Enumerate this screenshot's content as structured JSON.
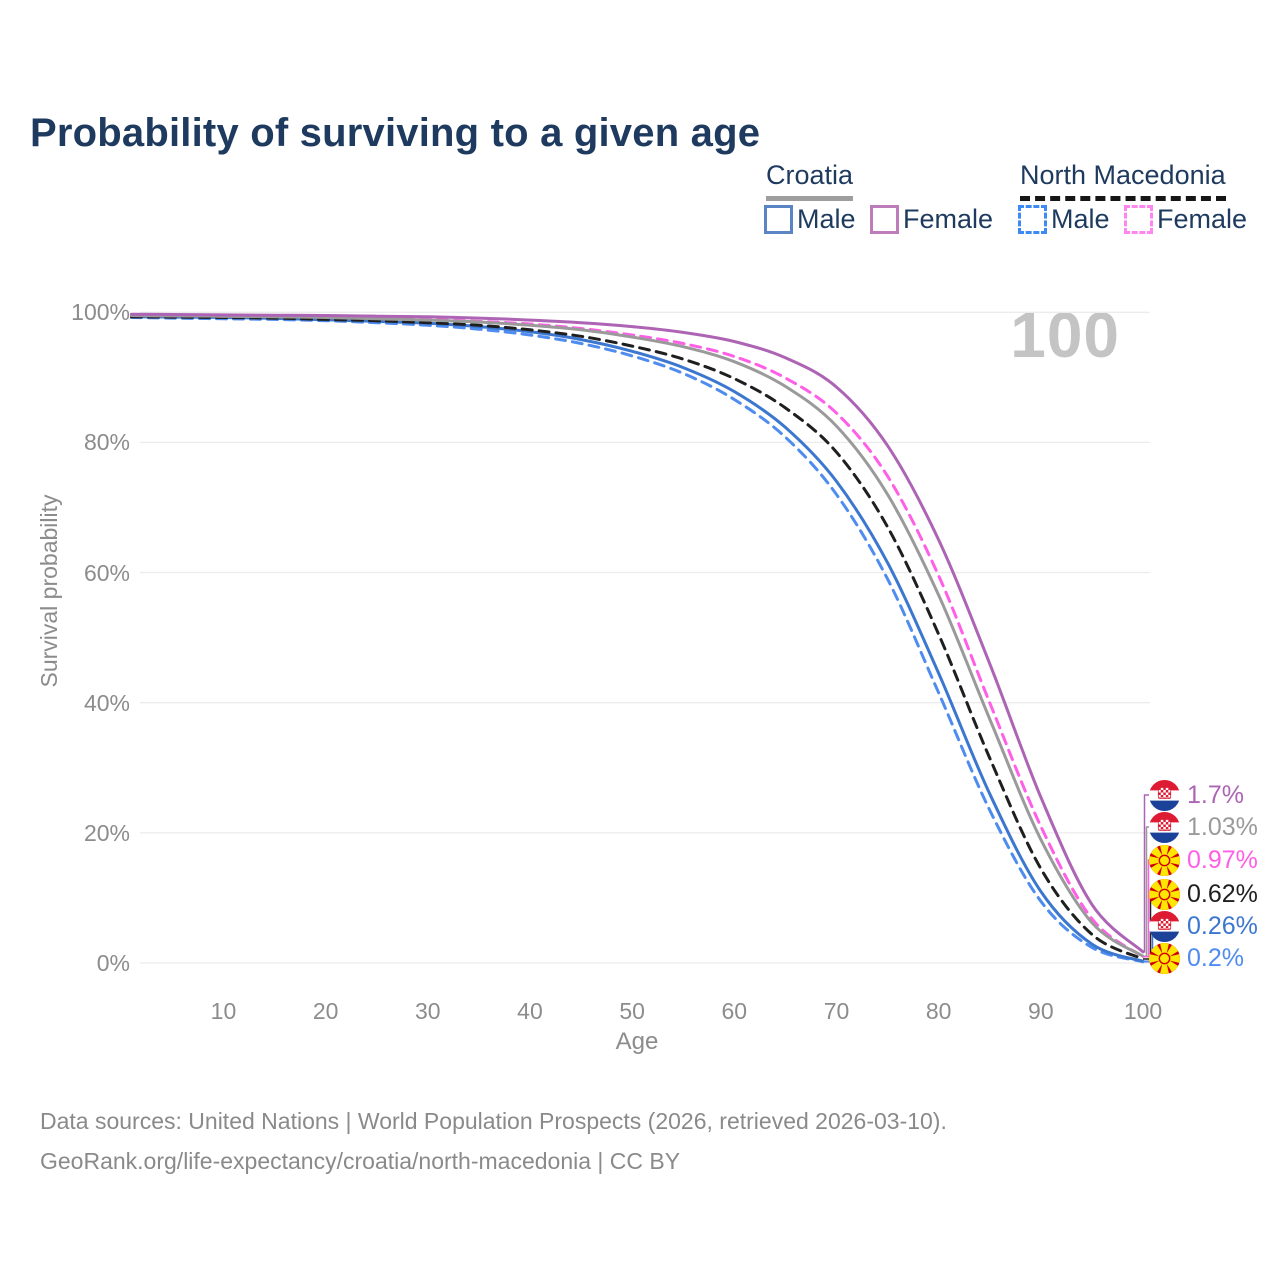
{
  "page": {
    "title": "Probability of surviving to a given age"
  },
  "legend": {
    "croatia": {
      "label": "Croatia",
      "male_label": "Male",
      "female_label": "Female"
    },
    "north_macedonia": {
      "label": "North Macedonia",
      "male_label": "Male",
      "female_label": "Female"
    }
  },
  "watermark": "100",
  "chart_data": {
    "type": "line",
    "title": "Probability of surviving to a given age",
    "xlabel": "Age",
    "ylabel": "Survival probability",
    "x_ticks": [
      10,
      20,
      30,
      40,
      50,
      60,
      70,
      80,
      90,
      100
    ],
    "y_tick_labels": [
      "0%",
      "20%",
      "40%",
      "60%",
      "80%",
      "100%"
    ],
    "xlim": [
      1,
      100
    ],
    "ylim": [
      0,
      100
    ],
    "grid": "horizontal",
    "legend_position": "top-right",
    "ages": [
      1,
      5,
      10,
      15,
      20,
      25,
      30,
      35,
      40,
      45,
      50,
      55,
      60,
      65,
      70,
      75,
      80,
      85,
      90,
      95,
      100
    ],
    "series": [
      {
        "name": "Croatia Female",
        "country": "Croatia",
        "flag": "hr",
        "color": "#ad64b4",
        "line": "solid",
        "end_label": "1.7%",
        "end_value": 1.7,
        "values": [
          99.7,
          99.65,
          99.6,
          99.55,
          99.5,
          99.4,
          99.3,
          99.1,
          98.8,
          98.4,
          97.8,
          96.9,
          95.5,
          93.0,
          88.5,
          79.5,
          65.0,
          46.0,
          25.5,
          9.0,
          1.7
        ]
      },
      {
        "name": "Croatia",
        "country": "Croatia",
        "flag": "hr",
        "color": "#9a9a9a",
        "line": "solid",
        "end_label": "1.03%",
        "end_value": 1.03,
        "values": [
          99.5,
          99.45,
          99.4,
          99.3,
          99.2,
          99.0,
          98.8,
          98.5,
          98.0,
          97.3,
          96.2,
          94.7,
          92.4,
          88.6,
          82.5,
          72.0,
          56.5,
          37.5,
          19.0,
          6.2,
          1.03
        ]
      },
      {
        "name": "North Macedonia Female",
        "country": "North Macedonia",
        "flag": "mk",
        "color": "#ff5fe6",
        "line": "dashed",
        "end_label": "0.97%",
        "end_value": 0.97,
        "values": [
          99.5,
          99.45,
          99.4,
          99.35,
          99.25,
          99.1,
          98.9,
          98.6,
          98.2,
          97.5,
          96.5,
          95.2,
          93.2,
          89.9,
          84.5,
          74.8,
          59.5,
          40.0,
          21.0,
          6.8,
          0.97
        ]
      },
      {
        "name": "North Macedonia",
        "country": "North Macedonia",
        "flag": "mk",
        "color": "#1f1f1f",
        "line": "dashed",
        "end_label": "0.62%",
        "end_value": 0.62,
        "values": [
          99.3,
          99.25,
          99.2,
          99.1,
          98.9,
          98.7,
          98.4,
          98.0,
          97.3,
          96.3,
          94.8,
          92.8,
          89.8,
          85.3,
          78.5,
          67.0,
          50.5,
          31.5,
          14.5,
          4.4,
          0.62
        ]
      },
      {
        "name": "Croatia Male",
        "country": "Croatia",
        "flag": "hr",
        "color": "#3c77cf",
        "line": "solid",
        "end_label": "0.26%",
        "end_value": 0.26,
        "values": [
          99.3,
          99.25,
          99.2,
          99.05,
          98.85,
          98.6,
          98.3,
          97.8,
          97.0,
          95.8,
          94.0,
          91.5,
          87.8,
          82.3,
          74.0,
          61.5,
          44.5,
          26.0,
          11.0,
          2.9,
          0.26
        ]
      },
      {
        "name": "North Macedonia Male",
        "country": "North Macedonia",
        "flag": "mk",
        "color": "#4f8cf0",
        "line": "dashed",
        "end_label": "0.2%",
        "end_value": 0.2,
        "values": [
          99.2,
          99.1,
          99.0,
          98.9,
          98.7,
          98.4,
          98.0,
          97.4,
          96.5,
          95.2,
          93.3,
          90.6,
          86.6,
          80.8,
          72.0,
          59.0,
          41.5,
          23.5,
          9.5,
          2.4,
          0.2
        ]
      }
    ]
  },
  "footer": {
    "line1": "Data sources: United Nations | World Population Prospects (2026, retrieved 2026-03-10).",
    "line2": "GeoRank.org/life-expectancy/croatia/north-macedonia | CC BY"
  }
}
